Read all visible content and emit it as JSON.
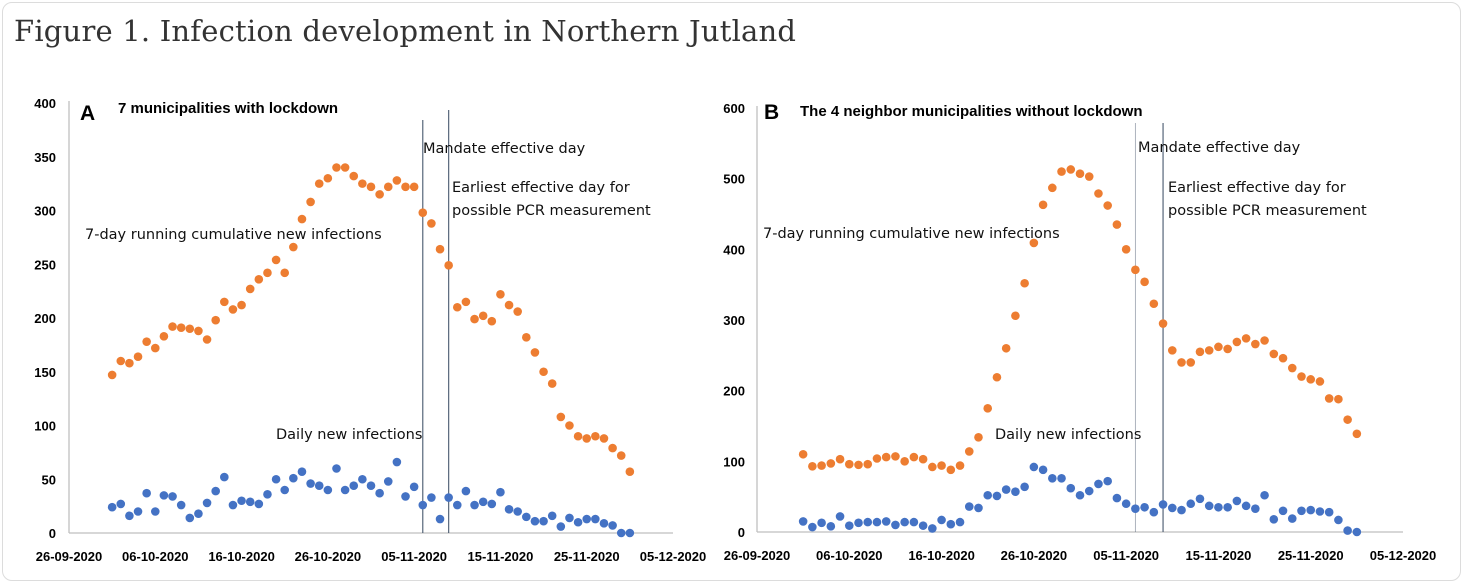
{
  "figure_title": "Figure 1. Infection development in Northern Jutland",
  "colors": {
    "cumulative": "#ED7D31",
    "daily": "#4472C4",
    "axis": "#BFBFBF",
    "vline": "#44546A"
  },
  "chart_data": [
    {
      "type": "scatter",
      "panel_letter": "A",
      "title": "7 municipalities with lockdown",
      "xlabel": "",
      "ylabel": "",
      "x_start": "2020-10-01",
      "xlim": [
        "2020-09-26",
        "2020-12-05"
      ],
      "x_tick_labels": [
        "26-09-2020",
        "06-10-2020",
        "16-10-2020",
        "26-10-2020",
        "05-11-2020",
        "15-11-2020",
        "25-11-2020",
        "05-12-2020"
      ],
      "ylim": [
        0,
        400
      ],
      "y_ticks": [
        0,
        50,
        100,
        150,
        200,
        250,
        300,
        350,
        400
      ],
      "grid": false,
      "vertical_lines": [
        {
          "date": "2020-11-06",
          "label": "Mandate effective day"
        },
        {
          "date": "2020-11-09",
          "label_lines": [
            "Earliest effective day for",
            "possible PCR measurement"
          ]
        }
      ],
      "series": [
        {
          "label": "7-day running cumulative new infections",
          "color_key": "cumulative",
          "values": [
            147,
            160,
            158,
            164,
            178,
            172,
            183,
            192,
            191,
            190,
            188,
            180,
            198,
            215,
            208,
            212,
            227,
            236,
            242,
            254,
            242,
            266,
            292,
            308,
            325,
            330,
            340,
            340,
            332,
            325,
            322,
            315,
            322,
            328,
            322,
            322,
            298,
            288,
            264,
            249,
            210,
            215,
            199,
            202,
            197,
            222,
            212,
            206,
            182,
            168,
            150,
            139,
            108,
            100,
            90,
            88,
            90,
            88,
            79,
            72,
            57
          ]
        },
        {
          "label": "Daily new infections",
          "color_key": "daily",
          "values": [
            24,
            27,
            16,
            20,
            37,
            20,
            35,
            34,
            26,
            14,
            18,
            28,
            39,
            52,
            26,
            30,
            29,
            27,
            36,
            50,
            40,
            51,
            57,
            46,
            44,
            40,
            60,
            40,
            44,
            50,
            44,
            37,
            48,
            66,
            34,
            43,
            26,
            33,
            13,
            33,
            26,
            39,
            26,
            29,
            27,
            38,
            22,
            20,
            15,
            11,
            11,
            16,
            6,
            14,
            10,
            13,
            13,
            9,
            7,
            0,
            0
          ]
        }
      ]
    },
    {
      "type": "scatter",
      "panel_letter": "B",
      "title": "The 4 neighbor municipalities without lockdown",
      "xlabel": "",
      "ylabel": "",
      "x_start": "2020-10-01",
      "xlim": [
        "2020-09-26",
        "2020-12-05"
      ],
      "x_tick_labels": [
        "26-09-2020",
        "06-10-2020",
        "16-10-2020",
        "26-10-2020",
        "05-11-2020",
        "15-11-2020",
        "25-11-2020",
        "05-12-2020"
      ],
      "ylim": [
        0,
        600
      ],
      "y_ticks": [
        0,
        100,
        200,
        300,
        400,
        500,
        600
      ],
      "grid": false,
      "vertical_lines": [
        {
          "date": "2020-11-06",
          "label": "Mandate effective day"
        },
        {
          "date": "2020-11-09",
          "label_lines": [
            "Earliest effective day for",
            "possible PCR measurement"
          ]
        }
      ],
      "series": [
        {
          "label": "7-day running cumulative new infections",
          "color_key": "cumulative",
          "values": [
            110,
            93,
            94,
            97,
            103,
            96,
            95,
            96,
            104,
            106,
            107,
            100,
            106,
            103,
            92,
            94,
            88,
            94,
            114,
            134,
            175,
            219,
            260,
            306,
            352,
            409,
            463,
            487,
            510,
            513,
            507,
            503,
            479,
            462,
            435,
            400,
            371,
            354,
            323,
            295,
            257,
            240,
            240,
            255,
            257,
            262,
            259,
            269,
            274,
            266,
            271,
            252,
            246,
            232,
            220,
            216,
            213,
            189,
            188,
            159,
            139
          ]
        },
        {
          "label": "Daily new infections",
          "color_key": "daily",
          "values": [
            15,
            7,
            13,
            8,
            22,
            9,
            13,
            14,
            14,
            15,
            10,
            14,
            14,
            9,
            5,
            17,
            11,
            14,
            36,
            34,
            52,
            51,
            60,
            57,
            64,
            92,
            88,
            76,
            76,
            62,
            52,
            58,
            68,
            72,
            48,
            40,
            33,
            35,
            28,
            39,
            34,
            31,
            40,
            47,
            37,
            35,
            35,
            44,
            37,
            33,
            52,
            18,
            30,
            19,
            30,
            31,
            29,
            28,
            17,
            2,
            0
          ]
        }
      ]
    }
  ]
}
